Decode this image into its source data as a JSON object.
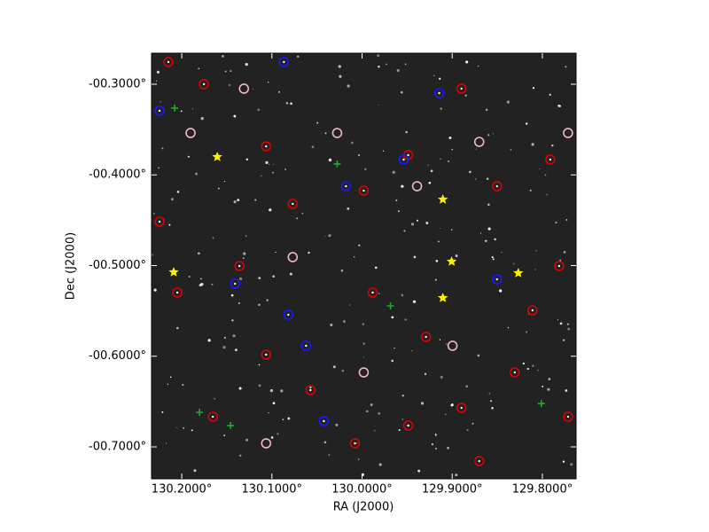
{
  "chart_data": {
    "type": "sky-image",
    "x_label": "RA (J2000)",
    "y_label": "Dec (J2000)",
    "xlim": [
      130.2335,
      129.7626
    ],
    "ylim": [
      -0.7352,
      -0.2658
    ],
    "xticks": [
      {
        "value": 130.2,
        "label": "130.2000°"
      },
      {
        "value": 130.1,
        "label": "130.1000°"
      },
      {
        "value": 130.0,
        "label": "130.0000°"
      },
      {
        "value": 129.9,
        "label": "129.9000°"
      },
      {
        "value": 129.8,
        "label": "129.8000°"
      }
    ],
    "yticks": [
      {
        "value": -0.3,
        "label": "-00.3000°"
      },
      {
        "value": -0.4,
        "label": "-00.4000°"
      },
      {
        "value": -0.5,
        "label": "-00.5000°"
      },
      {
        "value": -0.6,
        "label": "-00.6000°"
      },
      {
        "value": -0.7,
        "label": "-00.7000°"
      }
    ],
    "background": "#222222",
    "series": [
      {
        "color": "#dd0000",
        "marker": "dot-circle",
        "x": [
          130.2148,
          130.1754,
          130.1064,
          130.0769,
          129.9981,
          129.9488,
          129.8897,
          129.8503,
          129.7912,
          129.7814,
          129.8306,
          129.8897,
          129.9488,
          130.0079,
          130.0572,
          130.1064,
          130.1655,
          130.2049,
          130.2246,
          130.136,
          129.9882,
          129.9291,
          129.8109,
          129.7715,
          129.87
        ],
        "values": [
          -0.2755,
          -0.3,
          -0.3685,
          -0.432,
          -0.4174,
          -0.3782,
          -0.3049,
          -0.4125,
          -0.3831,
          -0.5005,
          -0.6179,
          -0.657,
          -0.6765,
          -0.6961,
          -0.6374,
          -0.5983,
          -0.6668,
          -0.5298,
          -0.4516,
          -0.5005,
          -0.5298,
          -0.5787,
          -0.5494,
          -0.6668,
          -0.7157
        ]
      },
      {
        "color": "#f4b6c2",
        "marker": "circle",
        "x": [
          130.131,
          130.1902,
          130.0276,
          129.939,
          130.0769,
          129.9981,
          129.8996,
          129.87,
          129.7715,
          130.1064
        ],
        "values": [
          -0.3049,
          -0.3538,
          -0.3538,
          -0.4125,
          -0.4907,
          -0.6179,
          -0.5885,
          -0.3636,
          -0.3538,
          -0.6961
        ]
      },
      {
        "color": "#1a1aff",
        "marker": "dot-circle",
        "x": [
          130.2246,
          130.0867,
          129.9144,
          129.9538,
          130.0178,
          130.1409,
          130.0818,
          130.0621,
          130.0424,
          129.8503
        ],
        "values": [
          -0.3293,
          -0.2755,
          -0.3098,
          -0.3831,
          -0.4125,
          -0.5201,
          -0.5543,
          -0.5885,
          -0.6716,
          -0.5152
        ]
      },
      {
        "color": "#22aa22",
        "marker": "plus",
        "x": [
          130.2079,
          130.0276,
          129.9685,
          130.1458,
          130.1803,
          129.8011
        ],
        "values": [
          -0.3264,
          -0.388,
          -0.5445,
          -0.6765,
          -0.6619,
          -0.6521
        ]
      },
      {
        "color": "#ffee00",
        "marker": "star",
        "x": [
          130.1606,
          130.2089,
          129.9104,
          129.9006,
          129.9104,
          129.8267
        ],
        "values": [
          -0.3802,
          -0.5073,
          -0.4271,
          -0.4956,
          -0.5357,
          -0.5083
        ]
      }
    ]
  }
}
